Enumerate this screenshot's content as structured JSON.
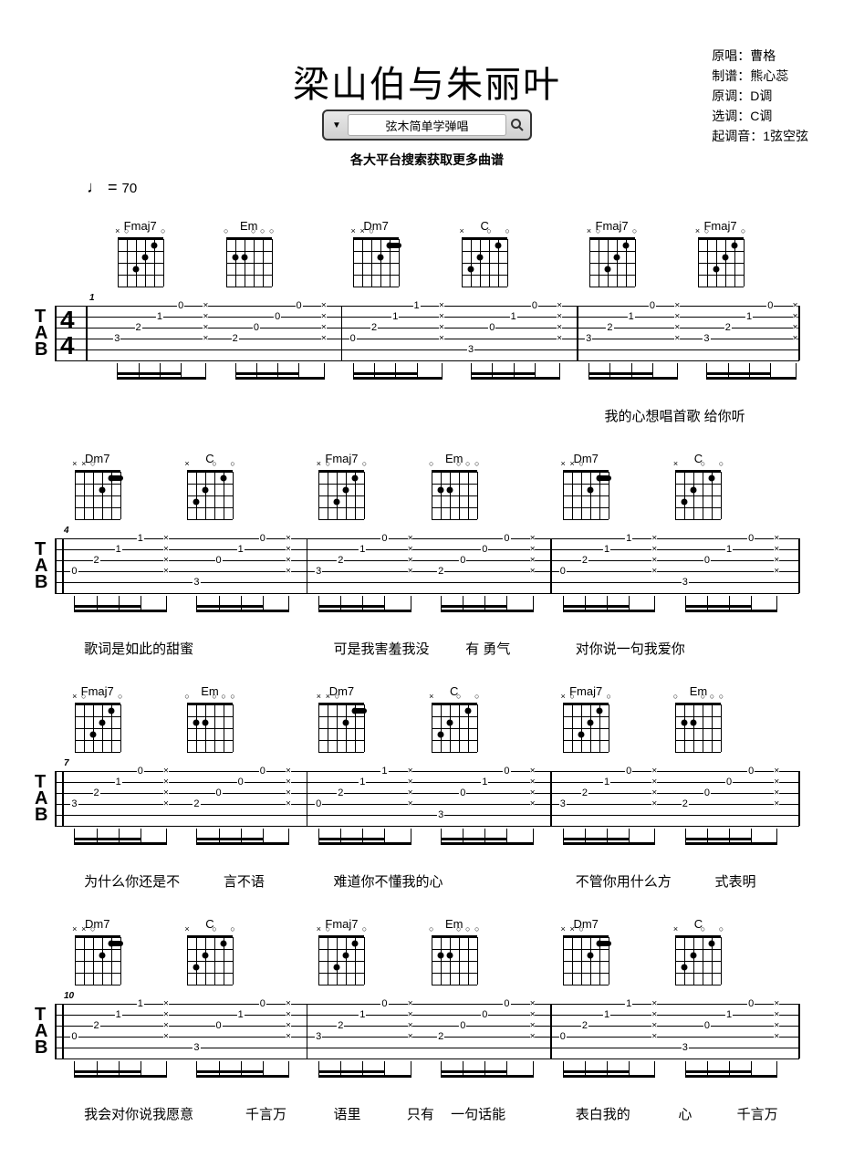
{
  "title": "梁山伯与朱丽叶",
  "meta": {
    "singer_label": "原唱：",
    "singer": "曹格",
    "transcriber_label": "制谱：",
    "transcriber": "熊心蕊",
    "original_key_label": "原调：",
    "original_key": "D调",
    "play_key_label": "选调：",
    "play_key": "C调",
    "tuning_label": "起调音：",
    "tuning": "1弦空弦"
  },
  "search_text": "弦木简单学弹唱",
  "subtitle": "各大平台搜索获取更多曲谱",
  "tempo_value": "70",
  "tempo_prefix": "♩ = ",
  "tab_label": "TAB",
  "time_sig_top": "4",
  "time_sig_bot": "4",
  "chords": {
    "Fmaj7": {
      "name": "Fmaj7",
      "dots": [
        {
          "s": 3,
          "f": 2
        },
        {
          "s": 2,
          "f": 1
        },
        {
          "s": 4,
          "f": 3
        }
      ],
      "muted": [
        6
      ],
      "open": [
        1,
        5
      ],
      "barre": null
    },
    "Em": {
      "name": "Em",
      "dots": [
        {
          "s": 5,
          "f": 2
        },
        {
          "s": 4,
          "f": 2
        }
      ],
      "muted": [],
      "open": [
        1,
        2,
        3,
        6
      ],
      "barre": null
    },
    "Dm7": {
      "name": "Dm7",
      "dots": [
        {
          "s": 2,
          "f": 1
        },
        {
          "s": 3,
          "f": 2
        }
      ],
      "muted": [
        6,
        5
      ],
      "open": [
        4
      ],
      "barre": {
        "from": 1,
        "to": 2,
        "fret": 1
      }
    },
    "C": {
      "name": "C",
      "dots": [
        {
          "s": 2,
          "f": 1
        },
        {
          "s": 4,
          "f": 2
        },
        {
          "s": 5,
          "f": 3
        }
      ],
      "muted": [
        6
      ],
      "open": [
        1,
        3
      ],
      "barre": null
    }
  },
  "systems": [
    {
      "measure_start": 1,
      "show_timesig": true,
      "bars": [
        {
          "pos": 2.5,
          "chord1": "Fmaj7",
          "chord2": "Em",
          "notes1": [
            {
              "s": 4,
              "f": "3"
            },
            {
              "s": 3,
              "f": "2"
            },
            {
              "s": 2,
              "f": "1"
            },
            {
              "s": 1,
              "f": "0"
            }
          ],
          "notes2": [
            {
              "s": 4,
              "f": "2"
            },
            {
              "s": 3,
              "f": "0"
            },
            {
              "s": 2,
              "f": "0"
            },
            {
              "s": 1,
              "f": "0"
            }
          ]
        },
        {
          "pos": 35.8,
          "chord1": "Dm7",
          "chord2": "C",
          "notes1": [
            {
              "s": 4,
              "f": "0"
            },
            {
              "s": 3,
              "f": "2"
            },
            {
              "s": 2,
              "f": "1"
            },
            {
              "s": 1,
              "f": "1"
            }
          ],
          "notes2": [
            {
              "s": 5,
              "f": "3"
            },
            {
              "s": 3,
              "f": "0"
            },
            {
              "s": 2,
              "f": "1"
            },
            {
              "s": 1,
              "f": "0"
            }
          ]
        },
        {
          "pos": 69.1,
          "chord1": "Fmaj7",
          "chord2": "Fmaj7",
          "notes1": [
            {
              "s": 4,
              "f": "3"
            },
            {
              "s": 3,
              "f": "2"
            },
            {
              "s": 2,
              "f": "1"
            },
            {
              "s": 1,
              "f": "0"
            }
          ],
          "notes2": [
            {
              "s": 4,
              "f": "3"
            },
            {
              "s": 3,
              "f": "2"
            },
            {
              "s": 2,
              "f": "1"
            },
            {
              "s": 1,
              "f": "0"
            }
          ]
        }
      ],
      "lyrics": [
        {
          "x": 73,
          "text": "我的心想唱首歌 给你听"
        }
      ]
    },
    {
      "measure_start": 4,
      "show_timesig": false,
      "bars": [
        {
          "pos": 0,
          "chord1": "Dm7",
          "chord2": "C",
          "notes1": [
            {
              "s": 4,
              "f": "0"
            },
            {
              "s": 3,
              "f": "2"
            },
            {
              "s": 2,
              "f": "1"
            },
            {
              "s": 1,
              "f": "1"
            }
          ],
          "notes2": [
            {
              "s": 5,
              "f": "3"
            },
            {
              "s": 3,
              "f": "0"
            },
            {
              "s": 2,
              "f": "1"
            },
            {
              "s": 1,
              "f": "0"
            }
          ]
        },
        {
          "pos": 33.3,
          "chord1": "Fmaj7",
          "chord2": "Em",
          "notes1": [
            {
              "s": 4,
              "f": "3"
            },
            {
              "s": 3,
              "f": "2"
            },
            {
              "s": 2,
              "f": "1"
            },
            {
              "s": 1,
              "f": "0"
            }
          ],
          "notes2": [
            {
              "s": 4,
              "f": "2"
            },
            {
              "s": 3,
              "f": "0"
            },
            {
              "s": 2,
              "f": "0"
            },
            {
              "s": 1,
              "f": "0"
            }
          ]
        },
        {
          "pos": 66.6,
          "chord1": "Dm7",
          "chord2": "C",
          "notes1": [
            {
              "s": 4,
              "f": "0"
            },
            {
              "s": 3,
              "f": "2"
            },
            {
              "s": 2,
              "f": "1"
            },
            {
              "s": 1,
              "f": "1"
            }
          ],
          "notes2": [
            {
              "s": 5,
              "f": "3"
            },
            {
              "s": 3,
              "f": "0"
            },
            {
              "s": 2,
              "f": "1"
            },
            {
              "s": 1,
              "f": "0"
            }
          ]
        }
      ],
      "lyrics": [
        {
          "x": 3,
          "text": "歌词是如此的甜蜜"
        },
        {
          "x": 37,
          "text": "可是我害羞我没"
        },
        {
          "x": 55,
          "text": "有 勇气"
        },
        {
          "x": 70,
          "text": "对你说一句我爱你"
        }
      ]
    },
    {
      "measure_start": 7,
      "show_timesig": false,
      "bars": [
        {
          "pos": 0,
          "chord1": "Fmaj7",
          "chord2": "Em",
          "notes1": [
            {
              "s": 4,
              "f": "3"
            },
            {
              "s": 3,
              "f": "2"
            },
            {
              "s": 2,
              "f": "1"
            },
            {
              "s": 1,
              "f": "0"
            }
          ],
          "notes2": [
            {
              "s": 4,
              "f": "2"
            },
            {
              "s": 3,
              "f": "0"
            },
            {
              "s": 2,
              "f": "0"
            },
            {
              "s": 1,
              "f": "0"
            }
          ]
        },
        {
          "pos": 33.3,
          "chord1": "Dm7",
          "chord2": "C",
          "notes1": [
            {
              "s": 4,
              "f": "0"
            },
            {
              "s": 3,
              "f": "2"
            },
            {
              "s": 2,
              "f": "1"
            },
            {
              "s": 1,
              "f": "1"
            }
          ],
          "notes2": [
            {
              "s": 5,
              "f": "3"
            },
            {
              "s": 3,
              "f": "0"
            },
            {
              "s": 2,
              "f": "1"
            },
            {
              "s": 1,
              "f": "0"
            }
          ]
        },
        {
          "pos": 66.6,
          "chord1": "Fmaj7",
          "chord2": "Em",
          "notes1": [
            {
              "s": 4,
              "f": "3"
            },
            {
              "s": 3,
              "f": "2"
            },
            {
              "s": 2,
              "f": "1"
            },
            {
              "s": 1,
              "f": "0"
            }
          ],
          "notes2": [
            {
              "s": 4,
              "f": "2"
            },
            {
              "s": 3,
              "f": "0"
            },
            {
              "s": 2,
              "f": "0"
            },
            {
              "s": 1,
              "f": "0"
            }
          ]
        }
      ],
      "lyrics": [
        {
          "x": 3,
          "text": "为什么你还是不"
        },
        {
          "x": 22,
          "text": "言不语"
        },
        {
          "x": 37,
          "text": "难道你不懂我的心"
        },
        {
          "x": 70,
          "text": "不管你用什么方"
        },
        {
          "x": 89,
          "text": "式表明"
        }
      ]
    },
    {
      "measure_start": 10,
      "show_timesig": false,
      "bars": [
        {
          "pos": 0,
          "chord1": "Dm7",
          "chord2": "C",
          "notes1": [
            {
              "s": 4,
              "f": "0"
            },
            {
              "s": 3,
              "f": "2"
            },
            {
              "s": 2,
              "f": "1"
            },
            {
              "s": 1,
              "f": "1"
            }
          ],
          "notes2": [
            {
              "s": 5,
              "f": "3"
            },
            {
              "s": 3,
              "f": "0"
            },
            {
              "s": 2,
              "f": "1"
            },
            {
              "s": 1,
              "f": "0"
            }
          ]
        },
        {
          "pos": 33.3,
          "chord1": "Fmaj7",
          "chord2": "Em",
          "notes1": [
            {
              "s": 4,
              "f": "3"
            },
            {
              "s": 3,
              "f": "2"
            },
            {
              "s": 2,
              "f": "1"
            },
            {
              "s": 1,
              "f": "0"
            }
          ],
          "notes2": [
            {
              "s": 4,
              "f": "2"
            },
            {
              "s": 3,
              "f": "0"
            },
            {
              "s": 2,
              "f": "0"
            },
            {
              "s": 1,
              "f": "0"
            }
          ]
        },
        {
          "pos": 66.6,
          "chord1": "Dm7",
          "chord2": "C",
          "notes1": [
            {
              "s": 4,
              "f": "0"
            },
            {
              "s": 3,
              "f": "2"
            },
            {
              "s": 2,
              "f": "1"
            },
            {
              "s": 1,
              "f": "1"
            }
          ],
          "notes2": [
            {
              "s": 5,
              "f": "3"
            },
            {
              "s": 3,
              "f": "0"
            },
            {
              "s": 2,
              "f": "1"
            },
            {
              "s": 1,
              "f": "0"
            }
          ]
        }
      ],
      "lyrics": [
        {
          "x": 3,
          "text": "我会对你说我愿意"
        },
        {
          "x": 25,
          "text": "千言万"
        },
        {
          "x": 37,
          "text": "语里"
        },
        {
          "x": 47,
          "text": "只有"
        },
        {
          "x": 53,
          "text": "一句话能"
        },
        {
          "x": 70,
          "text": "表白我的"
        },
        {
          "x": 84,
          "text": "心"
        },
        {
          "x": 92,
          "text": "千言万"
        }
      ]
    }
  ]
}
